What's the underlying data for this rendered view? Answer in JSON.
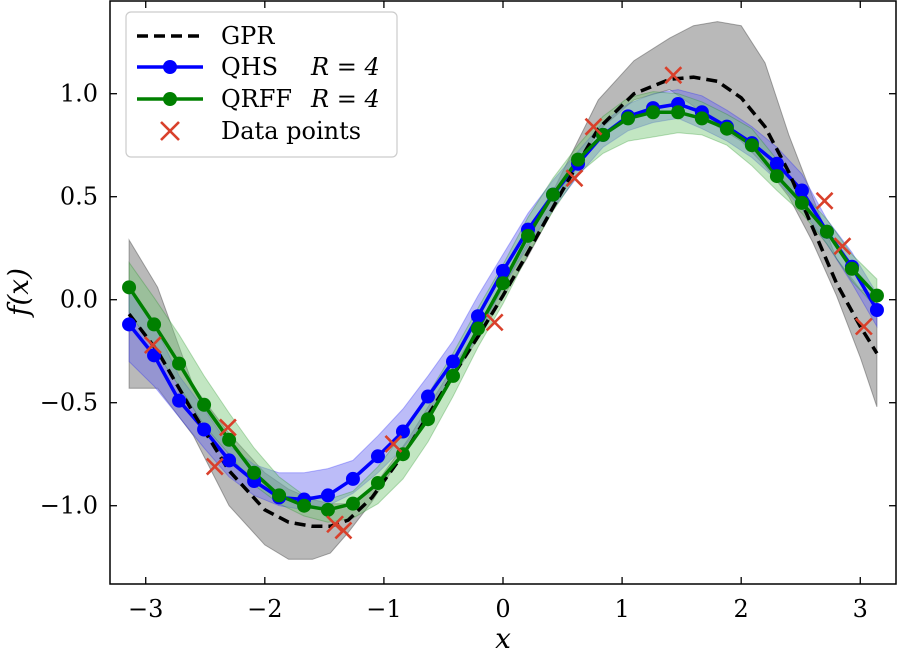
{
  "chart_data": {
    "type": "line",
    "title": "",
    "xlabel": "x",
    "ylabel": "f(x)",
    "xlim": [
      -3.3,
      3.3
    ],
    "ylim": [
      -1.38,
      1.45
    ],
    "x_ticks": [
      -3,
      -2,
      -1,
      0,
      1,
      2,
      3
    ],
    "x_tick_labels": [
      "−3",
      "−2",
      "−1",
      "0",
      "1",
      "2",
      "3"
    ],
    "y_ticks": [
      -1.0,
      -0.5,
      0.0,
      0.5,
      1.0
    ],
    "y_tick_labels": [
      "−1.0",
      "−0.5",
      "0.0",
      "0.5",
      "1.0"
    ],
    "legend_position": "top-left",
    "legend": [
      {
        "key": "gpr",
        "label": "GPR",
        "math": ""
      },
      {
        "key": "qhs",
        "label": "QHS",
        "math": "R = 4"
      },
      {
        "key": "qrff",
        "label": "QRFF",
        "math": "R = 4"
      },
      {
        "key": "data",
        "label": "Data points",
        "math": ""
      }
    ],
    "colors": {
      "gpr": "#000000",
      "gpr_band": "#808080",
      "qhs": "#0000ff",
      "qhs_band": "#6a6af0",
      "qrff": "#008000",
      "qrff_band": "#78c878",
      "data": "#d9402b"
    },
    "gpr": {
      "x": [
        -3.14,
        -2.9,
        -2.6,
        -2.3,
        -2.0,
        -1.8,
        -1.6,
        -1.45,
        -1.3,
        -1.1,
        -0.8,
        -0.5,
        -0.2,
        0.0,
        0.2,
        0.5,
        0.8,
        1.1,
        1.4,
        1.6,
        1.8,
        2.0,
        2.2,
        2.4,
        2.6,
        2.8,
        3.0,
        3.14
      ],
      "y": [
        -0.07,
        -0.25,
        -0.55,
        -0.83,
        -1.02,
        -1.08,
        -1.1,
        -1.1,
        -1.07,
        -0.96,
        -0.72,
        -0.44,
        -0.17,
        0.02,
        0.22,
        0.53,
        0.83,
        1.0,
        1.07,
        1.08,
        1.06,
        0.98,
        0.84,
        0.62,
        0.35,
        0.08,
        -0.13,
        -0.26
      ],
      "lower": [
        -0.43,
        -0.43,
        -0.66,
        -1.0,
        -1.19,
        -1.26,
        -1.26,
        -1.23,
        -1.13,
        -0.98,
        -0.71,
        -0.45,
        -0.18,
        0.01,
        0.2,
        0.52,
        0.82,
        0.97,
        1.02,
        0.94,
        0.84,
        0.77,
        0.65,
        0.5,
        0.28,
        0.02,
        -0.28,
        -0.52
      ],
      "upper": [
        0.29,
        0.06,
        -0.42,
        -0.65,
        -0.84,
        -0.92,
        -0.97,
        -0.99,
        -0.99,
        -0.92,
        -0.68,
        -0.4,
        -0.13,
        0.06,
        0.27,
        0.62,
        0.97,
        1.16,
        1.27,
        1.33,
        1.35,
        1.33,
        1.15,
        0.8,
        0.5,
        0.2,
        0.05,
        0.02
      ]
    },
    "qhs": {
      "x": [
        -3.14,
        -2.93,
        -2.72,
        -2.51,
        -2.3,
        -2.09,
        -1.88,
        -1.67,
        -1.47,
        -1.26,
        -1.05,
        -0.84,
        -0.63,
        -0.42,
        -0.21,
        0.0,
        0.21,
        0.42,
        0.63,
        0.84,
        1.05,
        1.26,
        1.47,
        1.67,
        1.88,
        2.09,
        2.3,
        2.51,
        2.72,
        2.93,
        3.14
      ],
      "y": [
        -0.12,
        -0.27,
        -0.49,
        -0.63,
        -0.78,
        -0.88,
        -0.96,
        -0.97,
        -0.95,
        -0.87,
        -0.76,
        -0.64,
        -0.47,
        -0.3,
        -0.08,
        0.14,
        0.34,
        0.51,
        0.66,
        0.8,
        0.89,
        0.93,
        0.95,
        0.91,
        0.84,
        0.76,
        0.66,
        0.53,
        0.33,
        0.16,
        -0.05
      ],
      "lower": [
        -0.3,
        -0.42,
        -0.57,
        -0.72,
        -0.86,
        -0.95,
        -1.0,
        -1.02,
        -1.0,
        -0.94,
        -0.84,
        -0.72,
        -0.57,
        -0.38,
        -0.17,
        0.06,
        0.26,
        0.44,
        0.6,
        0.74,
        0.82,
        0.86,
        0.88,
        0.83,
        0.77,
        0.69,
        0.58,
        0.44,
        0.27,
        0.08,
        -0.13
      ],
      "upper": [
        0.05,
        -0.12,
        -0.37,
        -0.53,
        -0.71,
        -0.8,
        -0.84,
        -0.84,
        -0.82,
        -0.78,
        -0.66,
        -0.53,
        -0.37,
        -0.2,
        0.02,
        0.22,
        0.42,
        0.58,
        0.72,
        0.86,
        0.95,
        1.0,
        1.02,
        0.99,
        0.92,
        0.84,
        0.74,
        0.61,
        0.39,
        0.23,
        0.03
      ]
    },
    "qrff": {
      "x": [
        -3.14,
        -2.93,
        -2.72,
        -2.51,
        -2.3,
        -2.09,
        -1.88,
        -1.67,
        -1.47,
        -1.26,
        -1.05,
        -0.84,
        -0.63,
        -0.42,
        -0.21,
        0.0,
        0.21,
        0.42,
        0.63,
        0.84,
        1.05,
        1.26,
        1.47,
        1.67,
        1.88,
        2.09,
        2.3,
        2.51,
        2.72,
        2.93,
        3.14
      ],
      "y": [
        0.06,
        -0.12,
        -0.31,
        -0.51,
        -0.68,
        -0.84,
        -0.95,
        -1.0,
        -1.02,
        -0.99,
        -0.89,
        -0.75,
        -0.58,
        -0.37,
        -0.14,
        0.08,
        0.31,
        0.51,
        0.68,
        0.8,
        0.88,
        0.91,
        0.91,
        0.88,
        0.83,
        0.75,
        0.6,
        0.47,
        0.33,
        0.15,
        0.02
      ],
      "lower": [
        -0.06,
        -0.24,
        -0.42,
        -0.61,
        -0.75,
        -0.9,
        -0.99,
        -1.05,
        -1.08,
        -1.06,
        -0.99,
        -0.87,
        -0.69,
        -0.47,
        -0.23,
        -0.02,
        0.22,
        0.43,
        0.61,
        0.71,
        0.77,
        0.79,
        0.81,
        0.8,
        0.75,
        0.65,
        0.53,
        0.42,
        0.27,
        0.09,
        -0.04
      ],
      "upper": [
        0.18,
        0.01,
        -0.17,
        -0.37,
        -0.55,
        -0.72,
        -0.86,
        -0.95,
        -0.97,
        -0.93,
        -0.81,
        -0.65,
        -0.46,
        -0.26,
        -0.04,
        0.17,
        0.4,
        0.59,
        0.75,
        0.89,
        0.98,
        1.01,
        1.0,
        0.96,
        0.9,
        0.83,
        0.68,
        0.52,
        0.39,
        0.22,
        0.1
      ]
    },
    "data_points": {
      "x": [
        -2.94,
        -2.42,
        -2.31,
        -1.41,
        -1.34,
        -0.92,
        -0.07,
        0.6,
        0.76,
        1.43,
        2.7,
        2.85,
        3.03
      ],
      "y": [
        -0.22,
        -0.81,
        -0.62,
        -1.09,
        -1.12,
        -0.7,
        -0.11,
        0.59,
        0.84,
        1.09,
        0.48,
        0.26,
        -0.13
      ]
    }
  }
}
